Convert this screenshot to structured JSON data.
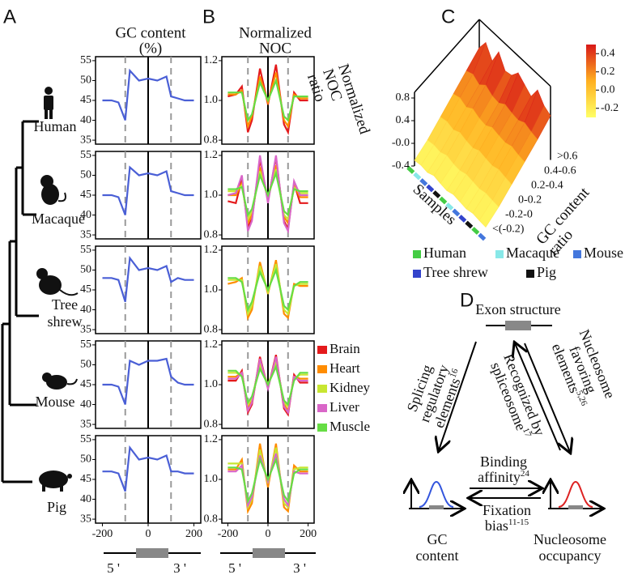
{
  "panel_labels": [
    "A",
    "B",
    "C",
    "D"
  ],
  "species": [
    [
      "Human"
    ],
    [
      "Macaque"
    ],
    [
      "Tree",
      "shrew"
    ],
    [
      "Mouse"
    ],
    [
      "Pig"
    ]
  ],
  "schematic_labels": [
    "5 '",
    "3 '"
  ],
  "chart_data": [
    {
      "type": "line",
      "title": [
        "GC content",
        "(%)"
      ],
      "x": [
        -200,
        -160,
        -130,
        -100,
        -80,
        -40,
        0,
        40,
        80,
        100,
        130,
        160,
        200
      ],
      "xlim": [
        -230,
        230
      ],
      "xticks": [
        -200,
        0,
        200
      ],
      "ylim": [
        34,
        56
      ],
      "yticks": [
        35,
        40,
        45,
        50,
        55
      ],
      "dashed_x": [
        -100,
        100
      ],
      "solid_x": 0,
      "color": "#4a5fd6",
      "panels": [
        {
          "values": [
            45,
            45,
            44.5,
            40,
            52.5,
            50,
            50.5,
            50,
            51,
            46,
            45.5,
            45,
            45
          ]
        },
        {
          "values": [
            45,
            45,
            44.5,
            40,
            52,
            50,
            50.5,
            50,
            51,
            46,
            45.5,
            45,
            45
          ]
        },
        {
          "values": [
            48,
            48,
            47.5,
            42,
            53,
            50,
            50.5,
            50,
            51,
            47,
            48,
            47.5,
            47.5
          ]
        },
        {
          "values": [
            45,
            45,
            44.5,
            40,
            51,
            50,
            51,
            51,
            51.5,
            47,
            45.5,
            45,
            45
          ]
        },
        {
          "values": [
            47,
            47,
            46.5,
            42,
            53,
            50,
            50.5,
            50,
            51,
            47,
            47,
            46.5,
            46.5
          ]
        }
      ]
    },
    {
      "type": "line",
      "title": [
        "Normalized",
        "NOC"
      ],
      "x": [
        -200,
        -160,
        -130,
        -100,
        -80,
        -40,
        0,
        40,
        80,
        100,
        130,
        160,
        200
      ],
      "xlim": [
        -230,
        230
      ],
      "xticks": [
        -200,
        0,
        200
      ],
      "ylim": [
        0.78,
        1.22
      ],
      "yticks": [
        0.8,
        {
          "value": 1.0,
          "label": "1.0"
        },
        1.2
      ],
      "dashed_x": [
        -100,
        100
      ],
      "solid_x": 0,
      "legend": [
        {
          "name": "Brain",
          "color": "#e41a1c"
        },
        {
          "name": "Heart",
          "color": "#ff8c00"
        },
        {
          "name": "Kidney",
          "color": "#c8e632"
        },
        {
          "name": "Liver",
          "color": "#d966c8"
        },
        {
          "name": "Muscle",
          "color": "#66dd44"
        }
      ],
      "panels": [
        {
          "series": [
            {
              "color": "#e41a1c",
              "values": [
                1.02,
                1.03,
                1.07,
                0.84,
                0.9,
                1.16,
                0.98,
                1.18,
                0.88,
                0.84,
                1.04,
                1.0,
                1.0
              ]
            },
            {
              "color": "#ff8c00",
              "values": [
                1.03,
                1.03,
                1.05,
                0.87,
                0.92,
                1.12,
                0.99,
                1.14,
                0.9,
                0.87,
                1.03,
                1.01,
                1.01
              ]
            },
            {
              "color": "#66dd44",
              "values": [
                1.04,
                1.04,
                1.04,
                0.9,
                0.93,
                1.09,
                1.0,
                1.1,
                0.92,
                0.9,
                1.02,
                1.02,
                1.02
              ]
            }
          ]
        },
        {
          "series": [
            {
              "color": "#e41a1c",
              "values": [
                0.97,
                0.96,
                1.08,
                0.84,
                0.88,
                1.18,
                0.97,
                1.19,
                0.87,
                0.83,
                1.06,
                0.96,
                0.96
              ]
            },
            {
              "color": "#ff8c00",
              "values": [
                1.0,
                1.0,
                1.06,
                0.86,
                0.9,
                1.14,
                0.98,
                1.15,
                0.89,
                0.86,
                1.05,
                0.99,
                0.99
              ]
            },
            {
              "color": "#c8e632",
              "values": [
                1.02,
                1.02,
                1.05,
                0.88,
                0.92,
                1.12,
                0.99,
                1.13,
                0.9,
                0.88,
                1.04,
                1.01,
                1.01
              ]
            },
            {
              "color": "#d966c8",
              "values": [
                1.0,
                1.01,
                1.1,
                0.82,
                0.87,
                1.2,
                0.96,
                1.2,
                0.86,
                0.82,
                1.07,
                1.0,
                1.0
              ]
            },
            {
              "color": "#66dd44",
              "values": [
                1.03,
                1.03,
                1.04,
                0.9,
                0.93,
                1.1,
                1.0,
                1.11,
                0.92,
                0.9,
                1.03,
                1.02,
                1.02
              ]
            }
          ]
        },
        {
          "series": [
            {
              "color": "#ff8c00",
              "values": [
                1.03,
                1.04,
                1.06,
                0.86,
                0.9,
                1.14,
                0.98,
                1.15,
                0.88,
                0.86,
                1.03,
                1.02,
                1.02
              ]
            },
            {
              "color": "#c8e632",
              "values": [
                1.05,
                1.05,
                1.05,
                0.88,
                0.92,
                1.12,
                0.99,
                1.13,
                0.9,
                0.88,
                1.02,
                1.03,
                1.03
              ]
            },
            {
              "color": "#66dd44",
              "values": [
                1.06,
                1.06,
                1.04,
                0.9,
                0.94,
                1.09,
                1.0,
                1.1,
                0.92,
                0.9,
                1.02,
                1.04,
                1.04
              ]
            }
          ]
        },
        {
          "series": [
            {
              "color": "#e41a1c",
              "values": [
                1.02,
                1.02,
                1.07,
                0.86,
                0.9,
                1.14,
                0.98,
                1.15,
                0.88,
                0.85,
                1.05,
                1.01,
                1.01
              ]
            },
            {
              "color": "#ff8c00",
              "values": [
                1.04,
                1.04,
                1.06,
                0.88,
                0.92,
                1.12,
                0.99,
                1.13,
                0.9,
                0.87,
                1.04,
                1.03,
                1.03
              ]
            },
            {
              "color": "#c8e632",
              "values": [
                1.06,
                1.06,
                1.05,
                0.9,
                0.93,
                1.1,
                1.0,
                1.11,
                0.91,
                0.89,
                1.03,
                1.05,
                1.05
              ]
            },
            {
              "color": "#d966c8",
              "values": [
                1.03,
                1.03,
                1.06,
                0.87,
                0.91,
                1.13,
                0.98,
                1.14,
                0.89,
                0.86,
                1.04,
                1.02,
                1.02
              ]
            },
            {
              "color": "#66dd44",
              "values": [
                1.07,
                1.07,
                1.04,
                0.91,
                0.94,
                1.08,
                1.0,
                1.09,
                0.92,
                0.9,
                1.02,
                1.06,
                1.06
              ]
            }
          ]
        },
        {
          "series": [
            {
              "color": "#ff8c00",
              "values": [
                1.05,
                1.05,
                1.1,
                0.84,
                0.88,
                1.18,
                0.96,
                1.18,
                0.86,
                0.84,
                1.07,
                1.04,
                1.04
              ]
            },
            {
              "color": "#c8e632",
              "values": [
                1.08,
                1.08,
                1.08,
                0.86,
                0.9,
                1.15,
                0.98,
                1.16,
                0.88,
                0.86,
                1.05,
                1.06,
                1.06
              ]
            },
            {
              "color": "#d966c8",
              "values": [
                1.04,
                1.04,
                1.07,
                0.87,
                0.91,
                1.12,
                0.99,
                1.13,
                0.9,
                0.87,
                1.04,
                1.03,
                1.03
              ]
            },
            {
              "color": "#66dd44",
              "values": [
                1.06,
                1.06,
                1.05,
                0.89,
                0.93,
                1.1,
                1.0,
                1.1,
                0.92,
                0.89,
                1.03,
                1.05,
                1.05
              ]
            }
          ]
        }
      ]
    },
    {
      "type": "surface",
      "z_label": [
        "Normalized",
        "NOC",
        "ratio"
      ],
      "x_label": "Samples",
      "y_label": [
        "GC content",
        "ratio"
      ],
      "y_categories": [
        "<(-0.2)",
        "-0.2-0",
        "0-0.2",
        "0.2-0.4",
        "0.4-0.6",
        ">0.6"
      ],
      "zlim": [
        -0.4,
        0.9
      ],
      "zticks": [
        -0.4,
        {
          "value": 0,
          "label": "-0.0"
        },
        0.4,
        0.8
      ],
      "values": [
        [
          -0.3,
          -0.28,
          -0.3,
          -0.25,
          -0.28,
          -0.3,
          -0.26,
          -0.28,
          -0.3,
          -0.27,
          -0.29,
          -0.3
        ],
        [
          -0.2,
          -0.18,
          -0.2,
          -0.15,
          -0.19,
          -0.2,
          -0.16,
          -0.18,
          -0.2,
          -0.17,
          -0.19,
          -0.2
        ],
        [
          -0.05,
          -0.02,
          -0.06,
          0.0,
          -0.04,
          -0.06,
          0.0,
          -0.03,
          -0.05,
          -0.01,
          -0.04,
          -0.06
        ],
        [
          0.1,
          0.14,
          0.08,
          0.16,
          0.1,
          0.08,
          0.15,
          0.12,
          0.1,
          0.14,
          0.1,
          0.08
        ],
        [
          0.25,
          0.3,
          0.22,
          0.32,
          0.24,
          0.22,
          0.3,
          0.26,
          0.24,
          0.3,
          0.25,
          0.22
        ],
        [
          0.4,
          0.6,
          0.38,
          0.65,
          0.42,
          0.45,
          0.6,
          0.5,
          0.4,
          0.62,
          0.45,
          0.38
        ]
      ],
      "sample_colors": [
        "#44cc44",
        "#88e8e8",
        "#4477dd",
        "#3344cc",
        "#111111",
        "#44cc44",
        "#88e8e8",
        "#4477dd",
        "#3344cc",
        "#111111",
        "#44cc44",
        "#4477dd"
      ],
      "colorbar": {
        "lim": [
          -0.3,
          0.5
        ],
        "ticks": [
          -0.2,
          {
            "value": 0,
            "label": "0.0"
          },
          0.2,
          0.4
        ],
        "colors": [
          "#ffff66",
          "#ffb020",
          "#d81818"
        ]
      },
      "legend": [
        {
          "name": "Human",
          "color": "#44cc44"
        },
        {
          "name": "Macaque",
          "color": "#88e8e8"
        },
        {
          "name": "Mouse",
          "color": "#4477dd"
        },
        {
          "name": "Tree shrew",
          "color": "#3344cc"
        },
        {
          "name": "Pig",
          "color": "#111111"
        }
      ]
    }
  ],
  "diagram": {
    "exon": "Exon structure",
    "splicing": {
      "lines": [
        "Splicing",
        "regulatory",
        "elements"
      ],
      "ref": "16"
    },
    "recognized": {
      "lines": [
        "Recognized by",
        "spliceosome"
      ],
      "ref": "17"
    },
    "nucleosome": {
      "lines": [
        "Nucleosome",
        "favoring",
        "elements"
      ],
      "ref": "5,26"
    },
    "binding": {
      "lines": [
        "Binding",
        "affinity"
      ],
      "ref": "24"
    },
    "fixation": {
      "lines": [
        "Fixation",
        "bias"
      ],
      "ref": "11-15"
    },
    "gc": [
      "GC",
      "content"
    ],
    "occupancy": [
      "Nucleosome",
      "occupancy"
    ]
  }
}
